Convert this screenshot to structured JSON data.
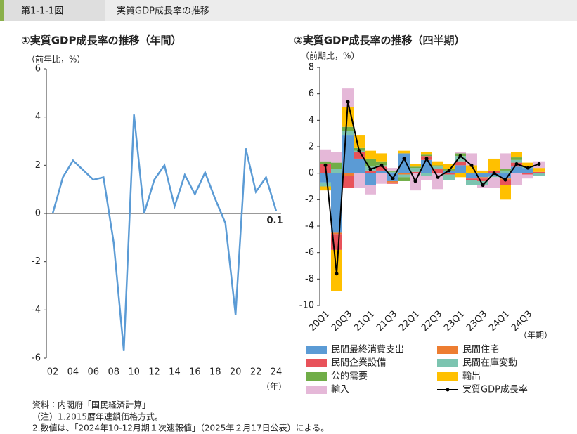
{
  "header": {
    "label": "第1-1-1図",
    "title": "実質GDP成長率の推移"
  },
  "chart_data": [
    {
      "type": "line",
      "title": "①実質GDP成長率の推移（年間）",
      "y_label": "（前年比，%）",
      "x_label": "（年）",
      "categories": [
        "02",
        null,
        "04",
        null,
        "06",
        null,
        "08",
        null,
        "10",
        null,
        "12",
        null,
        "14",
        null,
        "16",
        null,
        "18",
        null,
        "20",
        null,
        "22",
        null,
        "24"
      ],
      "values": [
        0,
        1.5,
        2.2,
        1.8,
        1.4,
        1.5,
        -1.2,
        -5.7,
        4.1,
        0,
        1.4,
        2.0,
        0.3,
        1.6,
        0.8,
        1.7,
        0.6,
        -0.4,
        -4.2,
        2.7,
        0.9,
        1.5,
        0.1
      ],
      "value_labels": [
        null,
        null,
        null,
        null,
        null,
        null,
        null,
        null,
        null,
        null,
        null,
        null,
        null,
        null,
        null,
        null,
        null,
        null,
        null,
        null,
        null,
        null,
        "0.1"
      ],
      "color": "#5b9bd5",
      "ylim": [
        -6,
        6
      ],
      "yticks": [
        -6,
        -4,
        -2,
        0,
        2,
        4,
        6
      ],
      "grid": false
    },
    {
      "type": "bar",
      "stacked": true,
      "title": "②実質GDP成長率の推移（四半期）",
      "y_label": "（前期比，%）",
      "x_label": "（年期）",
      "categories": [
        "20Q1",
        null,
        "20Q3",
        null,
        "21Q1",
        null,
        "21Q3",
        null,
        "22Q1",
        null,
        "22Q3",
        null,
        "23Q1",
        null,
        "23Q3",
        null,
        "24Q1",
        null,
        "24Q3",
        null
      ],
      "series": [
        {
          "name": "民間最終消費支出",
          "color": "#5b9bd5",
          "values": [
            -0.7,
            -4.5,
            2.9,
            1.1,
            -0.9,
            0.2,
            -0.6,
            1.5,
            0,
            1.0,
            0,
            0.2,
            0.6,
            -0.4,
            -0.3,
            -0.2,
            -0.4,
            0.5,
            0.4,
            0
          ]
        },
        {
          "name": "民間住宅",
          "color": "#ed7d31",
          "values": [
            0,
            -0.1,
            -0.2,
            0,
            0,
            0,
            -0.1,
            -0.1,
            0,
            0,
            0,
            0,
            0,
            0,
            -0.1,
            0,
            -0.1,
            0,
            0,
            0
          ]
        },
        {
          "name": "民間企業設備",
          "color": "#e8525a",
          "values": [
            0.7,
            -1.2,
            -0.9,
            0.5,
            0.2,
            0.3,
            -0.1,
            0,
            0.1,
            0.3,
            0.3,
            -0.1,
            0.3,
            -0.1,
            -0.2,
            0.2,
            -0.4,
            0.3,
            -0.1,
            0.1
          ]
        },
        {
          "name": "民間在庫変動",
          "color": "#7cc4b0",
          "values": [
            -0.3,
            0.3,
            0.3,
            0.1,
            0.3,
            0.1,
            0.1,
            -0.2,
            0.3,
            -0.2,
            0.2,
            -0.4,
            0.4,
            -0.4,
            -0.3,
            -0.1,
            0.2,
            0.2,
            0.1,
            -0.2
          ]
        },
        {
          "name": "公的需要",
          "color": "#70ad47",
          "values": [
            0.2,
            0.5,
            0.3,
            0.2,
            0.6,
            0.3,
            0.1,
            -0.3,
            0.1,
            0.1,
            0.1,
            0.1,
            0.2,
            0,
            0,
            0,
            0.1,
            0.2,
            0,
            0
          ]
        },
        {
          "name": "輸出",
          "color": "#ffc000",
          "values": [
            -0.3,
            -3.1,
            1.5,
            1.0,
            0.6,
            0.6,
            0,
            0.2,
            0.2,
            0.2,
            0.3,
            0.4,
            -0.3,
            0.6,
            0.2,
            0.9,
            -1.1,
            0.4,
            0.3,
            0.3
          ]
        },
        {
          "name": "輸入",
          "color": "#e5b8d8",
          "values": [
            0.9,
            0.8,
            1.4,
            -1.1,
            -0.7,
            -0.8,
            0.2,
            0,
            -1.3,
            -0.3,
            -1.2,
            0,
            0.1,
            0.9,
            -0.2,
            -0.8,
            1.2,
            -0.9,
            -0.3,
            0.5
          ]
        },
        {
          "name": "実質GDP成長率",
          "type": "line",
          "color": "#000000",
          "values": [
            0.6,
            -7.6,
            5.4,
            1.7,
            0.3,
            0.6,
            -0.4,
            1.1,
            -0.6,
            1.1,
            -0.3,
            0.2,
            1.3,
            0.6,
            -0.9,
            0,
            -0.5,
            0.7,
            0.4,
            0.7
          ]
        }
      ],
      "ylim": [
        -10,
        8
      ],
      "yticks": [
        -10,
        -8,
        -6,
        -4,
        -2,
        0,
        2,
        4,
        6,
        8
      ],
      "grid": false,
      "legend": "bottom"
    }
  ],
  "notes": [
    "資料：内閣府「国民経済計算」",
    "（注）1.2015暦年連鎖価格方式。",
    "2.数値は、「2024年10-12月期１次速報値」（2025年２月17日公表）による。"
  ]
}
